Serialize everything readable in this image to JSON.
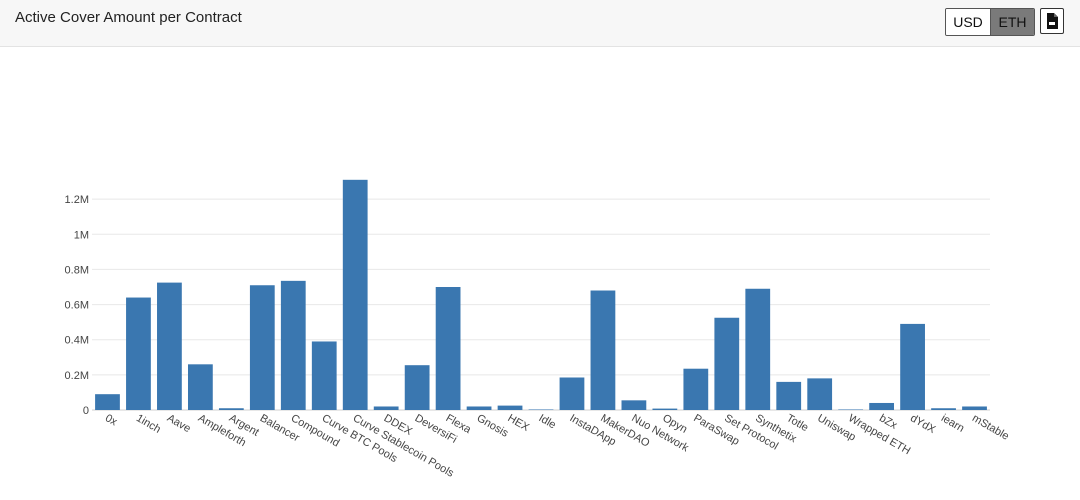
{
  "header": {
    "title": "Active Cover Amount per Contract",
    "currency_options": [
      "USD",
      "ETH"
    ],
    "selected_currency": "ETH",
    "download_icon": "csv-file-icon"
  },
  "colors": {
    "bar": "#3a77b0",
    "grid": "#e8e8e8",
    "toggle_selected": "#7a7a7a"
  },
  "chart_data": {
    "type": "bar",
    "title": "",
    "xlabel": "",
    "ylabel": "",
    "ylim": [
      0,
      1400000
    ],
    "yticks": [
      0,
      200000,
      400000,
      600000,
      800000,
      1000000,
      1200000
    ],
    "ytick_labels": [
      "0",
      "0.2M",
      "0.4M",
      "0.6M",
      "0.8M",
      "1M",
      "1.2M"
    ],
    "grid": true,
    "categories": [
      "0x",
      "1inch",
      "Aave",
      "Ampleforth",
      "Argent",
      "Balancer",
      "Compound",
      "Curve BTC Pools",
      "Curve Stablecoin Pools",
      "DDEX",
      "DeversiFi",
      "Flexa",
      "Gnosis",
      "HEX",
      "Idle",
      "InstaDApp",
      "MakerDAO",
      "Nuo Network",
      "Opyn",
      "ParaSwap",
      "Set Protocol",
      "Synthetix",
      "Totle",
      "Uniswap",
      "Wrapped ETH",
      "bZx",
      "dYdX",
      "iearn",
      "mStable"
    ],
    "values": [
      90000,
      640000,
      725000,
      260000,
      10000,
      710000,
      735000,
      390000,
      1310000,
      20000,
      255000,
      700000,
      20000,
      25000,
      3000,
      185000,
      680000,
      55000,
      8000,
      235000,
      525000,
      690000,
      160000,
      180000,
      3000,
      40000,
      490000,
      10000,
      20000
    ]
  }
}
